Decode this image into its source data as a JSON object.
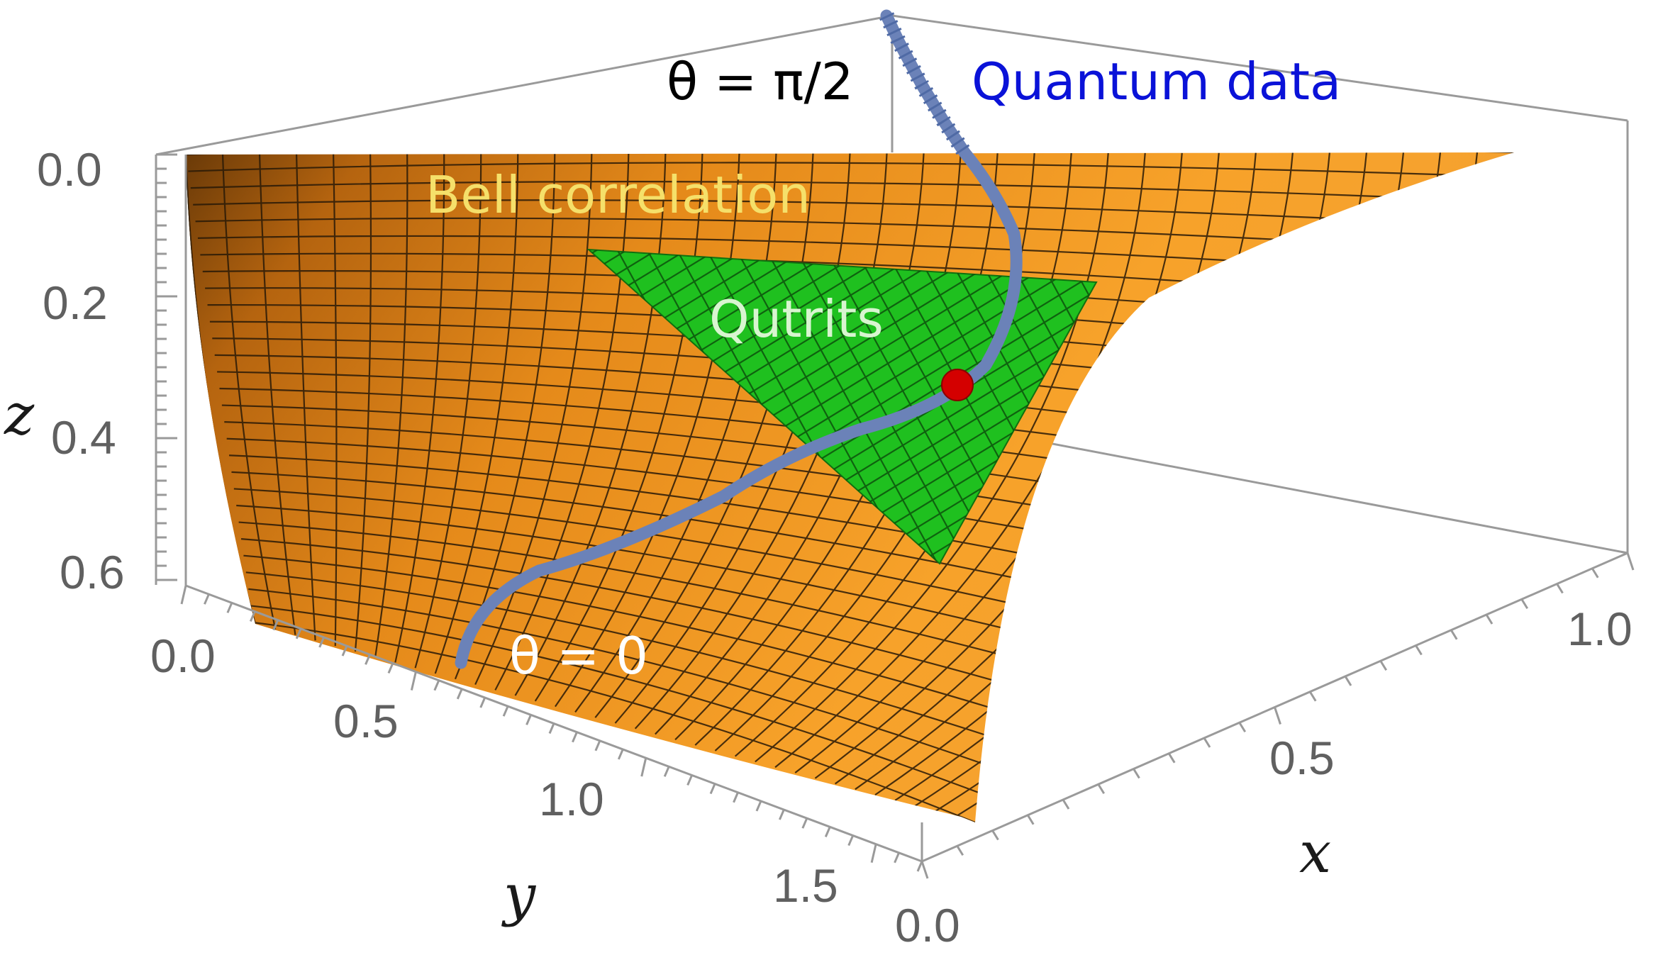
{
  "chart_data": {
    "type": "surface3d",
    "title": "",
    "axes": {
      "x": {
        "label": "x",
        "ticks": [
          "0.0",
          "0.5",
          "1.0"
        ],
        "range": [
          0,
          1.0
        ]
      },
      "y": {
        "label": "y",
        "ticks": [
          "0.0",
          "0.5",
          "1.0",
          "1.5"
        ],
        "range": [
          0,
          1.6
        ]
      },
      "z": {
        "label": "z",
        "ticks": [
          "0.0",
          "0.2",
          "0.4",
          "0.6"
        ],
        "range": [
          0,
          0.65
        ],
        "orientation": "increasing downward"
      }
    },
    "surface": {
      "name": "Bell correlation",
      "color": "#f39a1e",
      "mesh": true
    },
    "region": {
      "name": "Qutrits",
      "color": "#1fc01f",
      "shape": "triangle"
    },
    "curve": {
      "name": "Quantum data",
      "color": "#6b82b8",
      "endpoint_labels": [
        "θ = π/2",
        "θ = 0"
      ]
    },
    "marker": {
      "color": "#d40000"
    },
    "annotations": [
      {
        "text": "Quantum data",
        "color": "#0a12d8"
      },
      {
        "text": "θ = π/2",
        "color": "#000000"
      },
      {
        "text": "Bell correlation",
        "color": "#f5e06a"
      },
      {
        "text": "Qutrits",
        "color": "#d8f5d0"
      },
      {
        "text": "θ = 0",
        "color": "#ffffff"
      }
    ]
  }
}
